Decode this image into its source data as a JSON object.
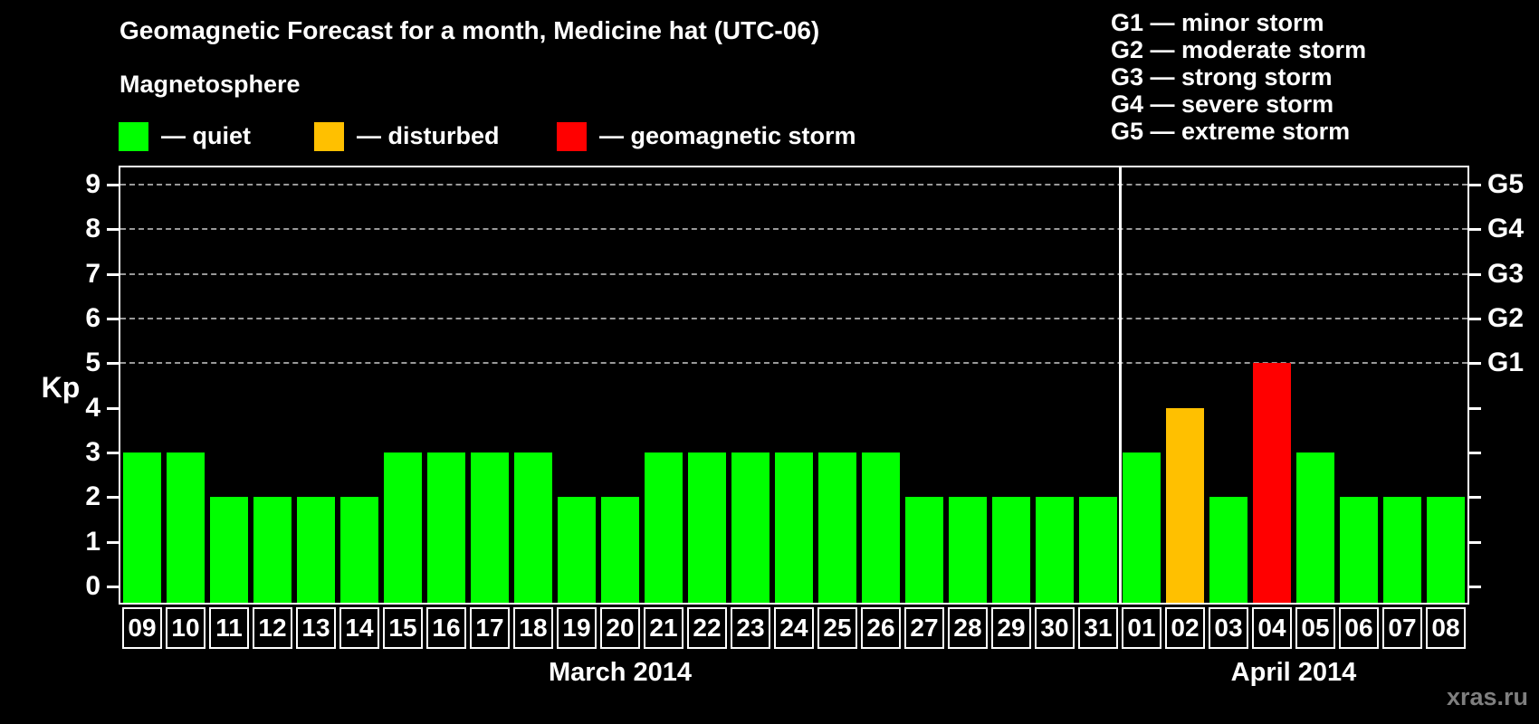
{
  "title": "Geomagnetic Forecast for a month, Medicine hat (UTC-06)",
  "subtitle": "Magnetosphere",
  "legend": {
    "quiet": {
      "label": "— quiet",
      "color": "#00ff00"
    },
    "disturbed": {
      "label": "— disturbed",
      "color": "#ffc000"
    },
    "storm": {
      "label": "— geomagnetic storm",
      "color": "#ff0000"
    }
  },
  "g_legend": [
    "G1 — minor storm",
    "G2 — moderate storm",
    "G3 — strong storm",
    "G4 — severe storm",
    "G5 — extreme storm"
  ],
  "watermark": "xras.ru",
  "chart_data": {
    "type": "bar",
    "title": "Geomagnetic Forecast for a month, Medicine hat (UTC-06)",
    "ylabel": "Kp",
    "ylim": [
      0,
      9
    ],
    "y_ticks": [
      0,
      1,
      2,
      3,
      4,
      5,
      6,
      7,
      8,
      9
    ],
    "gridlines": [
      5,
      6,
      7,
      8,
      9
    ],
    "grid_style": "dashed",
    "right_axis": [
      {
        "kp": 5,
        "label": "G1"
      },
      {
        "kp": 6,
        "label": "G2"
      },
      {
        "kp": 7,
        "label": "G3"
      },
      {
        "kp": 8,
        "label": "G4"
      },
      {
        "kp": 9,
        "label": "G5"
      }
    ],
    "months": [
      {
        "label": "March 2014",
        "days": 23
      },
      {
        "label": "April 2014",
        "days": 8
      }
    ],
    "categories": [
      "09",
      "10",
      "11",
      "12",
      "13",
      "14",
      "15",
      "16",
      "17",
      "18",
      "19",
      "20",
      "21",
      "22",
      "23",
      "24",
      "25",
      "26",
      "27",
      "28",
      "29",
      "30",
      "31",
      "01",
      "02",
      "03",
      "04",
      "05",
      "06",
      "07",
      "08"
    ],
    "values": [
      3,
      3,
      2,
      2,
      2,
      2,
      3,
      3,
      3,
      3,
      2,
      2,
      3,
      3,
      3,
      3,
      3,
      3,
      2,
      2,
      2,
      2,
      2,
      3,
      4,
      2,
      5,
      3,
      2,
      2,
      2
    ],
    "statuses": [
      "quiet",
      "quiet",
      "quiet",
      "quiet",
      "quiet",
      "quiet",
      "quiet",
      "quiet",
      "quiet",
      "quiet",
      "quiet",
      "quiet",
      "quiet",
      "quiet",
      "quiet",
      "quiet",
      "quiet",
      "quiet",
      "quiet",
      "quiet",
      "quiet",
      "quiet",
      "quiet",
      "quiet",
      "disturbed",
      "quiet",
      "storm",
      "quiet",
      "quiet",
      "quiet",
      "quiet"
    ],
    "colors": {
      "quiet": "#00ff00",
      "disturbed": "#ffc000",
      "storm": "#ff0000"
    }
  }
}
